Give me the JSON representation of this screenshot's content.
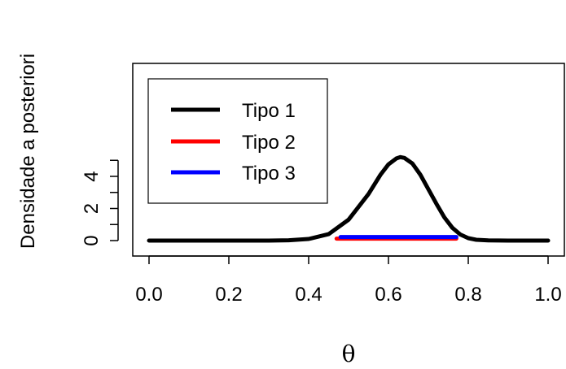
{
  "chart_data": {
    "type": "line",
    "title": "",
    "xlabel": "θ",
    "ylabel": "Densidade a posteriori",
    "xlim": [
      0,
      1
    ],
    "ylim": [
      0,
      5.2
    ],
    "x_ticks": [
      "0.0",
      "0.2",
      "0.4",
      "0.6",
      "0.8",
      "1.0"
    ],
    "x_tick_values": [
      0,
      0.2,
      0.4,
      0.6,
      0.8,
      1.0
    ],
    "y_ticks": [
      "0",
      "2",
      "4"
    ],
    "y_tick_values": [
      0,
      2,
      4
    ],
    "y_minor_tick_values": [
      1,
      3,
      5
    ],
    "legend_position": "top-left",
    "series": [
      {
        "name": "Tipo 1",
        "kind": "density-curve",
        "color": "#000000",
        "points": [
          [
            0.0,
            0.0
          ],
          [
            0.3,
            0.0
          ],
          [
            0.35,
            0.02
          ],
          [
            0.4,
            0.1
          ],
          [
            0.45,
            0.4
          ],
          [
            0.5,
            1.3
          ],
          [
            0.55,
            2.9
          ],
          [
            0.58,
            4.1
          ],
          [
            0.6,
            4.75
          ],
          [
            0.62,
            5.12
          ],
          [
            0.63,
            5.2
          ],
          [
            0.64,
            5.15
          ],
          [
            0.66,
            4.8
          ],
          [
            0.68,
            4.1
          ],
          [
            0.7,
            3.2
          ],
          [
            0.72,
            2.3
          ],
          [
            0.74,
            1.45
          ],
          [
            0.76,
            0.8
          ],
          [
            0.78,
            0.38
          ],
          [
            0.8,
            0.15
          ],
          [
            0.82,
            0.05
          ],
          [
            0.85,
            0.01
          ],
          [
            0.9,
            0.0
          ],
          [
            1.0,
            0.0
          ]
        ]
      },
      {
        "name": "Tipo 2",
        "kind": "interval",
        "color": "#ff0000",
        "x": [
          0.47,
          0.77
        ],
        "y": 0.12
      },
      {
        "name": "Tipo 3",
        "kind": "interval",
        "color": "#0000ff",
        "x": [
          0.48,
          0.77
        ],
        "y": 0.22
      }
    ]
  }
}
